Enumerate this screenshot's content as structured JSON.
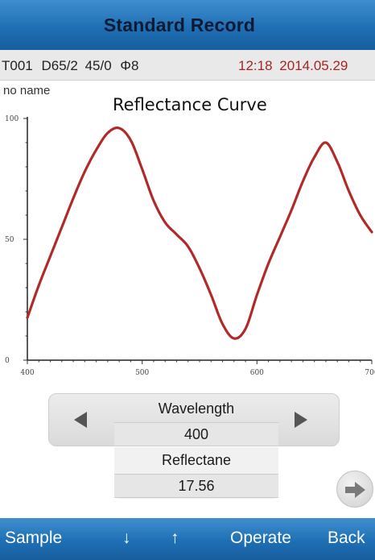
{
  "header": {
    "title": "Standard Record"
  },
  "info": {
    "record_id": "T001",
    "illuminant": "D65/2",
    "geometry": "45/0",
    "aperture": "Φ8",
    "time": "12:18",
    "date": "2014.05.29"
  },
  "sample": {
    "name": "no name"
  },
  "chart_data": {
    "type": "line",
    "title": "Reflectance Curve",
    "xlim": [
      400,
      700
    ],
    "ylim": [
      0,
      100
    ],
    "xticks": [
      "400",
      "500",
      "600",
      "700"
    ],
    "yticks": [
      "0",
      "50",
      "100"
    ],
    "x": [
      400,
      410,
      420,
      430,
      440,
      450,
      460,
      470,
      480,
      490,
      500,
      510,
      520,
      530,
      540,
      550,
      560,
      570,
      580,
      590,
      600,
      610,
      620,
      630,
      640,
      650,
      660,
      670,
      680,
      690,
      700
    ],
    "series": [
      {
        "values": [
          17.56,
          31,
          43,
          55,
          67,
          78,
          87,
          94,
          96,
          91,
          79,
          66,
          57,
          52,
          47,
          38,
          27,
          15,
          9,
          13,
          27,
          40,
          51,
          62,
          74,
          84,
          90,
          82,
          70,
          60,
          53
        ]
      }
    ],
    "color": "#b02a2a"
  },
  "controls": {
    "wavelength_label": "Wavelength",
    "wavelength_value": "400",
    "reflectance_label": "Reflectane",
    "reflectance_value": "17.56",
    "prev_icon": "triangle-left-icon",
    "next_icon": "triangle-right-icon",
    "page_icon": "arrow-right-icon"
  },
  "menu": {
    "sample": "Sample",
    "down": "↓",
    "up": "↑",
    "operate": "Operate",
    "back": "Back"
  },
  "colors": {
    "bar": "#1f6fb5",
    "curve": "#b02a2a",
    "date": "#a52424"
  }
}
